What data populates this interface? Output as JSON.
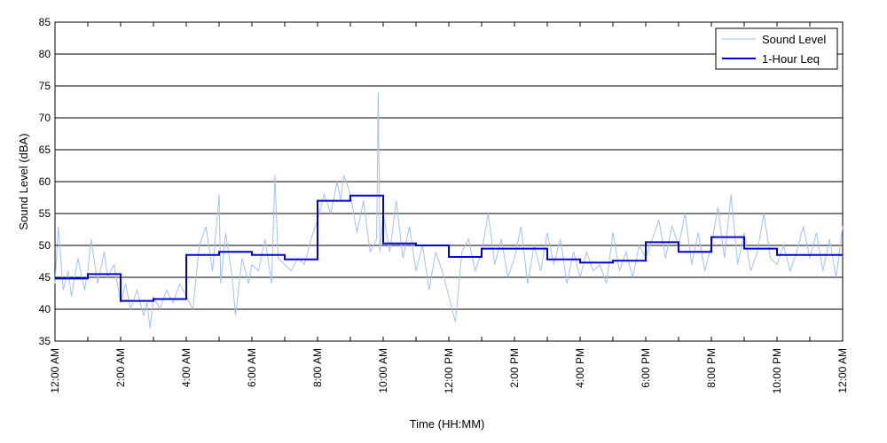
{
  "chart_data": {
    "type": "line",
    "title": "",
    "xlabel": "Time (HH:MM)",
    "ylabel": "Sound Level (dBA)",
    "ylim": [
      35,
      85
    ],
    "xlim": [
      0,
      24
    ],
    "y_ticks": [
      "35",
      "40",
      "45",
      "50",
      "55",
      "60",
      "65",
      "70",
      "75",
      "80",
      "85"
    ],
    "x_ticks": [
      {
        "h": 0,
        "label": "12:00 AM"
      },
      {
        "h": 2,
        "label": "2:00 AM"
      },
      {
        "h": 4,
        "label": "4:00 AM"
      },
      {
        "h": 6,
        "label": "6:00 AM"
      },
      {
        "h": 8,
        "label": "8:00 AM"
      },
      {
        "h": 10,
        "label": "10:00 AM"
      },
      {
        "h": 12,
        "label": "12:00 PM"
      },
      {
        "h": 14,
        "label": "2:00 PM"
      },
      {
        "h": 16,
        "label": "4:00 PM"
      },
      {
        "h": 18,
        "label": "6:00 PM"
      },
      {
        "h": 20,
        "label": "8:00 PM"
      },
      {
        "h": 22,
        "label": "10:00 PM"
      },
      {
        "h": 24,
        "label": "12:00 AM"
      }
    ],
    "grid": "horizontal",
    "legend_position": "top-right",
    "series": [
      {
        "name": "Sound Level",
        "color": "#a4bff5",
        "style": "thin-line",
        "x": [
          0,
          0.1,
          0.25,
          0.4,
          0.5,
          0.7,
          0.9,
          1,
          1.1,
          1.3,
          1.5,
          1.6,
          1.8,
          2,
          2.15,
          2.3,
          2.5,
          2.7,
          2.8,
          2.9,
          3,
          3.2,
          3.4,
          3.6,
          3.8,
          4,
          4.2,
          4.4,
          4.6,
          4.8,
          5,
          5.05,
          5.2,
          5.4,
          5.5,
          5.7,
          5.9,
          6,
          6.2,
          6.4,
          6.6,
          6.7,
          6.8,
          7,
          7.2,
          7.4,
          7.6,
          7.8,
          8,
          8.2,
          8.4,
          8.6,
          8.7,
          8.8,
          9,
          9.2,
          9.4,
          9.6,
          9.8,
          9.85,
          9.9,
          10,
          10.2,
          10.4,
          10.6,
          10.8,
          11,
          11.2,
          11.4,
          11.6,
          11.8,
          12,
          12.2,
          12.4,
          12.6,
          12.8,
          13,
          13.2,
          13.4,
          13.6,
          13.8,
          14,
          14.2,
          14.4,
          14.6,
          14.8,
          15,
          15.2,
          15.4,
          15.6,
          15.8,
          16,
          16.2,
          16.4,
          16.6,
          16.8,
          17,
          17.2,
          17.4,
          17.6,
          17.8,
          18,
          18.2,
          18.4,
          18.6,
          18.8,
          19,
          19.2,
          19.4,
          19.6,
          19.8,
          20,
          20.2,
          20.4,
          20.6,
          20.8,
          21,
          21.2,
          21.4,
          21.6,
          21.8,
          22,
          22.2,
          22.4,
          22.6,
          22.8,
          23,
          23.2,
          23.4,
          23.6,
          23.8,
          24
        ],
        "values": [
          44,
          53,
          43,
          46,
          42,
          48,
          43,
          46,
          51,
          44,
          49,
          45,
          47,
          41,
          44,
          40,
          43,
          39,
          41,
          37,
          42,
          40,
          43,
          41,
          44,
          42,
          40,
          50,
          53,
          46,
          58,
          44,
          52,
          45,
          39,
          48,
          44,
          47,
          46,
          51,
          44,
          61,
          48,
          47,
          46,
          48,
          47,
          51,
          54,
          58,
          55,
          60,
          57,
          61,
          58,
          52,
          57,
          49,
          51,
          74,
          49,
          55,
          49,
          57,
          48,
          53,
          46,
          50,
          43,
          49,
          46,
          42,
          38,
          49,
          51,
          46,
          49,
          55,
          47,
          51,
          45,
          48,
          53,
          44,
          50,
          46,
          52,
          47,
          51,
          44,
          49,
          45,
          49,
          46,
          47,
          44,
          52,
          46,
          49,
          45,
          50,
          48,
          51,
          54,
          48,
          53,
          50,
          55,
          47,
          52,
          46,
          50,
          56,
          48,
          58,
          47,
          52,
          46,
          49,
          55,
          48,
          47,
          50,
          46,
          49,
          53,
          48,
          52,
          46,
          51,
          45,
          53
        ]
      },
      {
        "name": "1-Hour Leq",
        "color": "#0000d8",
        "style": "step",
        "step_hours": [
          0,
          1,
          2,
          3,
          4,
          5,
          6,
          7,
          8,
          9,
          10,
          11,
          12,
          13,
          14,
          15,
          16,
          17,
          18,
          19,
          20,
          21,
          22,
          23
        ],
        "values": [
          44.8,
          45.5,
          41.3,
          41.6,
          48.5,
          49.0,
          48.5,
          47.8,
          57.0,
          57.8,
          50.3,
          50.0,
          48.2,
          49.5,
          49.5,
          47.8,
          47.3,
          47.6,
          50.5,
          49.0,
          51.3,
          49.5,
          48.5,
          48.5
        ]
      }
    ]
  }
}
